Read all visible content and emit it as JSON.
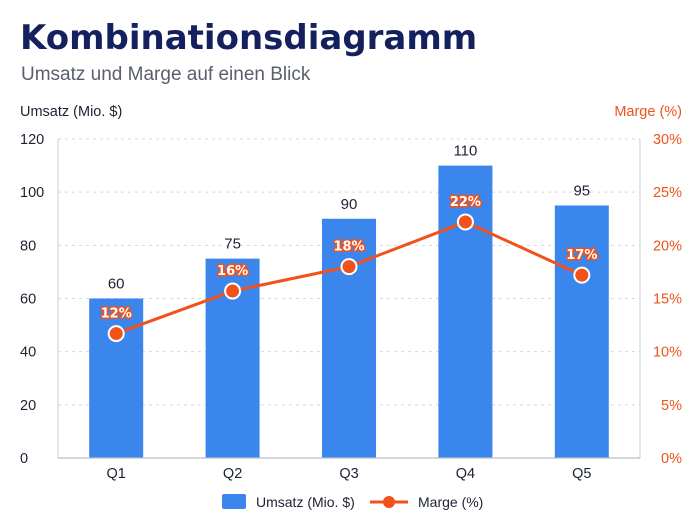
{
  "chart_data": {
    "type": "bar+line",
    "title": "Kombinationsdiagramm",
    "subtitle": "Umsatz und Marge auf einen Blick",
    "categories": [
      "Q1",
      "Q2",
      "Q3",
      "Q4",
      "Q5"
    ],
    "left_axis": {
      "label": "Umsatz (Mio. $)",
      "range": [
        0,
        120
      ],
      "ticks": [
        0,
        20,
        40,
        60,
        80,
        100,
        120
      ],
      "tick_labels": [
        "0",
        "20",
        "40",
        "60",
        "80",
        "100",
        "120"
      ]
    },
    "right_axis": {
      "label": "Marge (%)",
      "range": [
        0,
        30
      ],
      "ticks": [
        0,
        5,
        10,
        15,
        20,
        25,
        30
      ],
      "tick_labels": [
        "0%",
        "5%",
        "10%",
        "15%",
        "20%",
        "25%",
        "30%"
      ]
    },
    "series": [
      {
        "name": "Umsatz (Mio. $)",
        "type": "bar",
        "axis": "left",
        "values": [
          60,
          75,
          90,
          110,
          95
        ],
        "labels": [
          "60",
          "75",
          "90",
          "110",
          "95"
        ]
      },
      {
        "name": "Marge (%)",
        "type": "line",
        "axis": "right",
        "values": [
          11.7,
          15.7,
          18,
          22.2,
          17.2
        ],
        "labels": [
          "12%",
          "16%",
          "18%",
          "22%",
          "17%"
        ]
      }
    ],
    "grid": true,
    "legend": "bottom-center"
  },
  "colors": {
    "bar": "#3b86ed",
    "line": "#f0521a",
    "title": "#14215e",
    "left_axis_text": "#1b2233",
    "right_axis_text": "#f0521a",
    "grid": "#d4d8df",
    "axis": "#c7ccd4"
  }
}
